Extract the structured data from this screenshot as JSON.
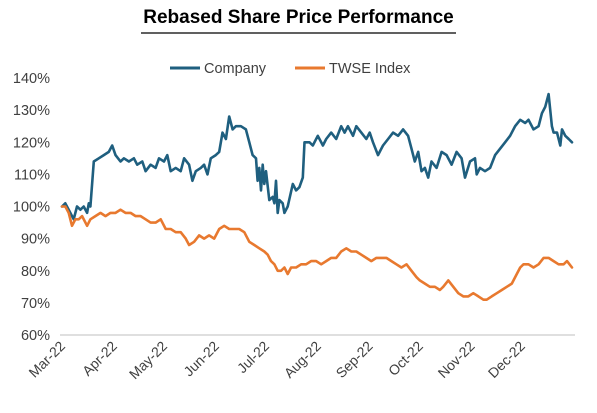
{
  "chart_data": {
    "type": "line",
    "title": "Rebased Share Price Performance",
    "legend_position": "top",
    "grid": false,
    "ylim": [
      0.6,
      1.4
    ],
    "y_ticks": [
      0.6,
      0.7,
      0.8,
      0.9,
      1.0,
      1.1,
      1.2,
      1.3,
      1.4
    ],
    "y_tick_labels": [
      "60%",
      "70%",
      "80%",
      "90%",
      "100%",
      "110%",
      "120%",
      "130%",
      "140%"
    ],
    "x_tick_labels": [
      "Mar-22",
      "Apr-22",
      "May-22",
      "Jun-22",
      "Jul-22",
      "Aug-22",
      "Sep-22",
      "Oct-22",
      "Nov-22",
      "Dec-22"
    ],
    "x_tick_dates": [
      "2022-03-01",
      "2022-04-01",
      "2022-05-01",
      "2022-06-01",
      "2022-07-01",
      "2022-08-01",
      "2022-09-01",
      "2022-10-01",
      "2022-11-01",
      "2022-12-01"
    ],
    "x_range": [
      "2022-03-01",
      "2022-12-31"
    ],
    "series": [
      {
        "name": "Company",
        "color": "#1F5F7F",
        "points": [
          [
            "2022-03-01",
            1.0
          ],
          [
            "2022-03-03",
            1.01
          ],
          [
            "2022-03-05",
            0.99
          ],
          [
            "2022-03-08",
            0.96
          ],
          [
            "2022-03-10",
            1.0
          ],
          [
            "2022-03-12",
            0.99
          ],
          [
            "2022-03-14",
            1.0
          ],
          [
            "2022-03-16",
            0.98
          ],
          [
            "2022-03-17",
            1.01
          ],
          [
            "2022-03-18",
            1.0
          ],
          [
            "2022-03-20",
            1.14
          ],
          [
            "2022-03-23",
            1.15
          ],
          [
            "2022-03-26",
            1.16
          ],
          [
            "2022-03-29",
            1.17
          ],
          [
            "2022-03-31",
            1.19
          ],
          [
            "2022-04-02",
            1.16
          ],
          [
            "2022-04-05",
            1.14
          ],
          [
            "2022-04-07",
            1.15
          ],
          [
            "2022-04-10",
            1.14
          ],
          [
            "2022-04-13",
            1.15
          ],
          [
            "2022-04-15",
            1.13
          ],
          [
            "2022-04-18",
            1.14
          ],
          [
            "2022-04-20",
            1.11
          ],
          [
            "2022-04-23",
            1.13
          ],
          [
            "2022-04-26",
            1.12
          ],
          [
            "2022-04-28",
            1.15
          ],
          [
            "2022-05-01",
            1.14
          ],
          [
            "2022-05-03",
            1.16
          ],
          [
            "2022-05-05",
            1.11
          ],
          [
            "2022-05-08",
            1.12
          ],
          [
            "2022-05-11",
            1.11
          ],
          [
            "2022-05-13",
            1.15
          ],
          [
            "2022-05-16",
            1.13
          ],
          [
            "2022-05-18",
            1.08
          ],
          [
            "2022-05-20",
            1.11
          ],
          [
            "2022-05-23",
            1.12
          ],
          [
            "2022-05-25",
            1.13
          ],
          [
            "2022-05-27",
            1.1
          ],
          [
            "2022-05-29",
            1.15
          ],
          [
            "2022-06-01",
            1.16
          ],
          [
            "2022-06-03",
            1.17
          ],
          [
            "2022-06-05",
            1.23
          ],
          [
            "2022-06-07",
            1.21
          ],
          [
            "2022-06-09",
            1.28
          ],
          [
            "2022-06-11",
            1.24
          ],
          [
            "2022-06-13",
            1.25
          ],
          [
            "2022-06-16",
            1.25
          ],
          [
            "2022-06-19",
            1.24
          ],
          [
            "2022-06-21",
            1.2
          ],
          [
            "2022-06-23",
            1.16
          ],
          [
            "2022-06-25",
            1.15
          ],
          [
            "2022-06-26",
            1.08
          ],
          [
            "2022-06-27",
            1.12
          ],
          [
            "2022-06-28",
            1.05
          ],
          [
            "2022-06-29",
            1.13
          ],
          [
            "2022-06-30",
            1.07
          ],
          [
            "2022-07-01",
            1.11
          ],
          [
            "2022-07-03",
            1.02
          ],
          [
            "2022-07-05",
            1.03
          ],
          [
            "2022-07-06",
            1.01
          ],
          [
            "2022-07-07",
            1.08
          ],
          [
            "2022-07-08",
            0.98
          ],
          [
            "2022-07-09",
            1.02
          ],
          [
            "2022-07-11",
            1.01
          ],
          [
            "2022-07-12",
            0.98
          ],
          [
            "2022-07-14",
            1.0
          ],
          [
            "2022-07-17",
            1.07
          ],
          [
            "2022-07-19",
            1.05
          ],
          [
            "2022-07-21",
            1.06
          ],
          [
            "2022-07-23",
            1.09
          ],
          [
            "2022-07-24",
            1.2
          ],
          [
            "2022-07-27",
            1.2
          ],
          [
            "2022-07-29",
            1.19
          ],
          [
            "2022-08-01",
            1.22
          ],
          [
            "2022-08-04",
            1.19
          ],
          [
            "2022-08-06",
            1.21
          ],
          [
            "2022-08-09",
            1.23
          ],
          [
            "2022-08-12",
            1.21
          ],
          [
            "2022-08-15",
            1.25
          ],
          [
            "2022-08-17",
            1.23
          ],
          [
            "2022-08-19",
            1.25
          ],
          [
            "2022-08-22",
            1.22
          ],
          [
            "2022-08-24",
            1.25
          ],
          [
            "2022-08-27",
            1.23
          ],
          [
            "2022-08-30",
            1.21
          ],
          [
            "2022-09-01",
            1.23
          ],
          [
            "2022-09-03",
            1.2
          ],
          [
            "2022-09-06",
            1.16
          ],
          [
            "2022-09-09",
            1.19
          ],
          [
            "2022-09-12",
            1.21
          ],
          [
            "2022-09-15",
            1.23
          ],
          [
            "2022-09-18",
            1.22
          ],
          [
            "2022-09-21",
            1.24
          ],
          [
            "2022-09-24",
            1.22
          ],
          [
            "2022-09-26",
            1.18
          ],
          [
            "2022-09-28",
            1.14
          ],
          [
            "2022-09-30",
            1.17
          ],
          [
            "2022-10-02",
            1.11
          ],
          [
            "2022-10-04",
            1.12
          ],
          [
            "2022-10-06",
            1.09
          ],
          [
            "2022-10-08",
            1.14
          ],
          [
            "2022-10-11",
            1.12
          ],
          [
            "2022-10-14",
            1.17
          ],
          [
            "2022-10-17",
            1.16
          ],
          [
            "2022-10-20",
            1.13
          ],
          [
            "2022-10-23",
            1.17
          ],
          [
            "2022-10-26",
            1.15
          ],
          [
            "2022-10-28",
            1.09
          ],
          [
            "2022-10-31",
            1.14
          ],
          [
            "2022-11-03",
            1.15
          ],
          [
            "2022-11-04",
            1.1
          ],
          [
            "2022-11-06",
            1.12
          ],
          [
            "2022-11-09",
            1.11
          ],
          [
            "2022-11-12",
            1.12
          ],
          [
            "2022-11-15",
            1.16
          ],
          [
            "2022-11-18",
            1.18
          ],
          [
            "2022-11-21",
            1.2
          ],
          [
            "2022-11-24",
            1.22
          ],
          [
            "2022-11-27",
            1.25
          ],
          [
            "2022-11-30",
            1.27
          ],
          [
            "2022-12-03",
            1.26
          ],
          [
            "2022-12-05",
            1.27
          ],
          [
            "2022-12-08",
            1.24
          ],
          [
            "2022-12-11",
            1.25
          ],
          [
            "2022-12-13",
            1.29
          ],
          [
            "2022-12-15",
            1.31
          ],
          [
            "2022-12-17",
            1.35
          ],
          [
            "2022-12-19",
            1.25
          ],
          [
            "2022-12-20",
            1.23
          ],
          [
            "2022-12-22",
            1.23
          ],
          [
            "2022-12-24",
            1.19
          ],
          [
            "2022-12-25",
            1.24
          ],
          [
            "2022-12-27",
            1.22
          ],
          [
            "2022-12-29",
            1.21
          ],
          [
            "2022-12-31",
            1.2
          ]
        ]
      },
      {
        "name": "TWSE Index",
        "color": "#E8792F",
        "points": [
          [
            "2022-03-01",
            1.0
          ],
          [
            "2022-03-03",
            1.0
          ],
          [
            "2022-03-05",
            0.98
          ],
          [
            "2022-03-07",
            0.94
          ],
          [
            "2022-03-09",
            0.96
          ],
          [
            "2022-03-11",
            0.96
          ],
          [
            "2022-03-13",
            0.97
          ],
          [
            "2022-03-16",
            0.94
          ],
          [
            "2022-03-18",
            0.96
          ],
          [
            "2022-03-21",
            0.97
          ],
          [
            "2022-03-24",
            0.98
          ],
          [
            "2022-03-27",
            0.97
          ],
          [
            "2022-03-30",
            0.98
          ],
          [
            "2022-04-02",
            0.98
          ],
          [
            "2022-04-05",
            0.99
          ],
          [
            "2022-04-08",
            0.98
          ],
          [
            "2022-04-11",
            0.98
          ],
          [
            "2022-04-14",
            0.97
          ],
          [
            "2022-04-17",
            0.97
          ],
          [
            "2022-04-20",
            0.96
          ],
          [
            "2022-04-23",
            0.95
          ],
          [
            "2022-04-26",
            0.95
          ],
          [
            "2022-04-29",
            0.96
          ],
          [
            "2022-05-02",
            0.93
          ],
          [
            "2022-05-05",
            0.93
          ],
          [
            "2022-05-08",
            0.92
          ],
          [
            "2022-05-11",
            0.92
          ],
          [
            "2022-05-14",
            0.9
          ],
          [
            "2022-05-16",
            0.88
          ],
          [
            "2022-05-19",
            0.89
          ],
          [
            "2022-05-22",
            0.91
          ],
          [
            "2022-05-25",
            0.9
          ],
          [
            "2022-05-28",
            0.91
          ],
          [
            "2022-05-31",
            0.9
          ],
          [
            "2022-06-03",
            0.93
          ],
          [
            "2022-06-06",
            0.94
          ],
          [
            "2022-06-09",
            0.93
          ],
          [
            "2022-06-12",
            0.93
          ],
          [
            "2022-06-15",
            0.93
          ],
          [
            "2022-06-18",
            0.92
          ],
          [
            "2022-06-21",
            0.89
          ],
          [
            "2022-06-24",
            0.88
          ],
          [
            "2022-06-27",
            0.87
          ],
          [
            "2022-06-30",
            0.86
          ],
          [
            "2022-07-02",
            0.85
          ],
          [
            "2022-07-04",
            0.83
          ],
          [
            "2022-07-06",
            0.82
          ],
          [
            "2022-07-08",
            0.8
          ],
          [
            "2022-07-10",
            0.8
          ],
          [
            "2022-07-12",
            0.81
          ],
          [
            "2022-07-14",
            0.79
          ],
          [
            "2022-07-16",
            0.81
          ],
          [
            "2022-07-19",
            0.81
          ],
          [
            "2022-07-22",
            0.82
          ],
          [
            "2022-07-25",
            0.82
          ],
          [
            "2022-07-28",
            0.83
          ],
          [
            "2022-07-31",
            0.83
          ],
          [
            "2022-08-03",
            0.82
          ],
          [
            "2022-08-06",
            0.83
          ],
          [
            "2022-08-09",
            0.84
          ],
          [
            "2022-08-12",
            0.84
          ],
          [
            "2022-08-15",
            0.86
          ],
          [
            "2022-08-18",
            0.87
          ],
          [
            "2022-08-21",
            0.86
          ],
          [
            "2022-08-24",
            0.86
          ],
          [
            "2022-08-27",
            0.85
          ],
          [
            "2022-08-30",
            0.84
          ],
          [
            "2022-09-02",
            0.83
          ],
          [
            "2022-09-05",
            0.84
          ],
          [
            "2022-09-08",
            0.84
          ],
          [
            "2022-09-11",
            0.84
          ],
          [
            "2022-09-14",
            0.83
          ],
          [
            "2022-09-17",
            0.82
          ],
          [
            "2022-09-20",
            0.81
          ],
          [
            "2022-09-23",
            0.82
          ],
          [
            "2022-09-26",
            0.8
          ],
          [
            "2022-09-29",
            0.78
          ],
          [
            "2022-10-01",
            0.77
          ],
          [
            "2022-10-04",
            0.76
          ],
          [
            "2022-10-07",
            0.75
          ],
          [
            "2022-10-10",
            0.75
          ],
          [
            "2022-10-13",
            0.74
          ],
          [
            "2022-10-15",
            0.75
          ],
          [
            "2022-10-18",
            0.77
          ],
          [
            "2022-10-21",
            0.75
          ],
          [
            "2022-10-24",
            0.73
          ],
          [
            "2022-10-27",
            0.72
          ],
          [
            "2022-10-30",
            0.72
          ],
          [
            "2022-11-02",
            0.73
          ],
          [
            "2022-11-05",
            0.72
          ],
          [
            "2022-11-08",
            0.71
          ],
          [
            "2022-11-10",
            0.71
          ],
          [
            "2022-11-13",
            0.72
          ],
          [
            "2022-11-16",
            0.73
          ],
          [
            "2022-11-19",
            0.74
          ],
          [
            "2022-11-22",
            0.75
          ],
          [
            "2022-11-25",
            0.76
          ],
          [
            "2022-11-28",
            0.79
          ],
          [
            "2022-11-30",
            0.81
          ],
          [
            "2022-12-02",
            0.82
          ],
          [
            "2022-12-05",
            0.82
          ],
          [
            "2022-12-08",
            0.81
          ],
          [
            "2022-12-11",
            0.82
          ],
          [
            "2022-12-14",
            0.84
          ],
          [
            "2022-12-17",
            0.84
          ],
          [
            "2022-12-20",
            0.83
          ],
          [
            "2022-12-23",
            0.82
          ],
          [
            "2022-12-26",
            0.82
          ],
          [
            "2022-12-28",
            0.83
          ],
          [
            "2022-12-31",
            0.81
          ]
        ]
      }
    ]
  }
}
